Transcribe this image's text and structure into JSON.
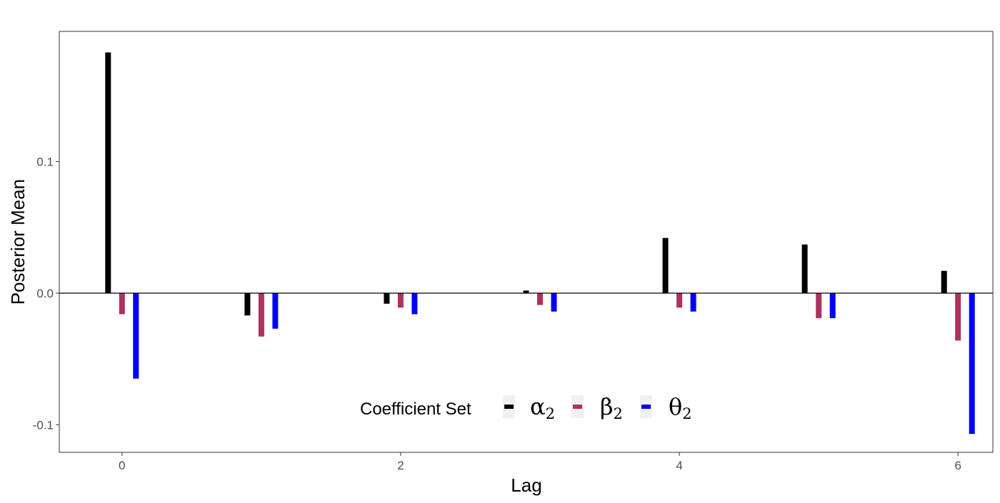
{
  "chart_data": {
    "type": "bar",
    "xlabel": "Lag",
    "ylabel": "Posterior Mean",
    "xlim": [
      -0.45,
      6.25
    ],
    "ylim": [
      -0.121,
      0.199
    ],
    "x_ticks": [
      0,
      2,
      4,
      6
    ],
    "x_tick_labels": [
      "0",
      "2",
      "4",
      "6"
    ],
    "y_ticks": [
      -0.1,
      0.0,
      0.1
    ],
    "y_tick_labels": [
      "-0.1",
      "0.0",
      "0.1"
    ],
    "zero_line": true,
    "grid": false,
    "categories": [
      0,
      1,
      2,
      3,
      4,
      5,
      6
    ],
    "series": [
      {
        "name": "α2",
        "symbol": "α",
        "subscript": "2",
        "color": "#000000",
        "values": [
          0.183,
          -0.017,
          -0.008,
          0.002,
          0.042,
          0.037,
          0.017
        ]
      },
      {
        "name": "β2",
        "symbol": "β",
        "subscript": "2",
        "color": "#B03060",
        "values": [
          -0.016,
          -0.033,
          -0.011,
          -0.009,
          -0.011,
          -0.019,
          -0.036
        ]
      },
      {
        "name": "θ2",
        "symbol": "θ",
        "subscript": "2",
        "color": "#0000FF",
        "values": [
          -0.065,
          -0.027,
          -0.016,
          -0.014,
          -0.014,
          -0.019,
          -0.107
        ]
      }
    ],
    "legend": {
      "title": "Coefficient Set",
      "position": "bottom-center-inside"
    }
  }
}
